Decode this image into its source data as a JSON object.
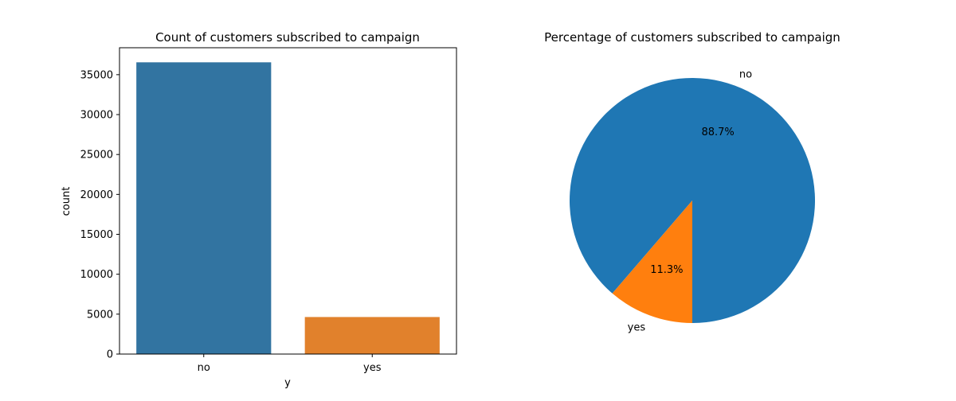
{
  "chart_data": [
    {
      "type": "bar",
      "title": "Count of customers subscribed to campaign",
      "xlabel": "y",
      "ylabel": "count",
      "categories": [
        "no",
        "yes"
      ],
      "values": [
        36548,
        4640
      ],
      "ylim": [
        0,
        38374
      ],
      "yticks": [
        0,
        5000,
        10000,
        15000,
        20000,
        25000,
        30000,
        35000
      ],
      "grid": false,
      "colors": [
        "#3274a1",
        "#e1812c"
      ]
    },
    {
      "type": "pie",
      "title": "Percentage of customers subscribed to campaign",
      "labels": [
        "no",
        "yes"
      ],
      "values": [
        88.7,
        11.3
      ],
      "pct_labels": [
        "88.7%",
        "11.3%"
      ],
      "colors": [
        "#1f77b4",
        "#ff7f0e"
      ]
    }
  ]
}
